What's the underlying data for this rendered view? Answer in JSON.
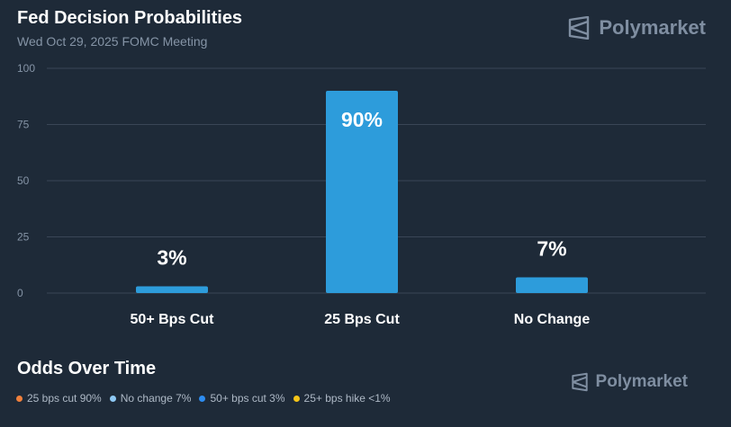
{
  "header": {
    "title": "Fed Decision Probabilities",
    "subtitle": "Wed Oct 29, 2025 FOMC Meeting",
    "brand": "Polymarket"
  },
  "colors": {
    "bar": "#2d9cdb",
    "grid": "#3a4656",
    "tick": "#8594a6"
  },
  "chart_data": {
    "type": "bar",
    "title": "Fed Decision Probabilities",
    "subtitle": "Wed Oct 29, 2025 FOMC Meeting",
    "categories": [
      "50+ Bps Cut",
      "25 Bps Cut",
      "No Change"
    ],
    "values": [
      3,
      90,
      7
    ],
    "data_labels": [
      "3%",
      "90%",
      "7%"
    ],
    "xlabel": "",
    "ylabel": "",
    "ylim": [
      0,
      100
    ],
    "yticks": [
      0,
      25,
      50,
      75,
      100
    ],
    "grid": true
  },
  "odds": {
    "title": "Odds Over Time",
    "brand": "Polymarket",
    "legend": [
      {
        "label": "25 bps cut 90%",
        "color": "#f0803c"
      },
      {
        "label": "No change 7%",
        "color": "#8ec9f5"
      },
      {
        "label": "50+ bps cut 3%",
        "color": "#2d8cf0"
      },
      {
        "label": "25+ bps hike <1%",
        "color": "#f5c518"
      }
    ]
  }
}
